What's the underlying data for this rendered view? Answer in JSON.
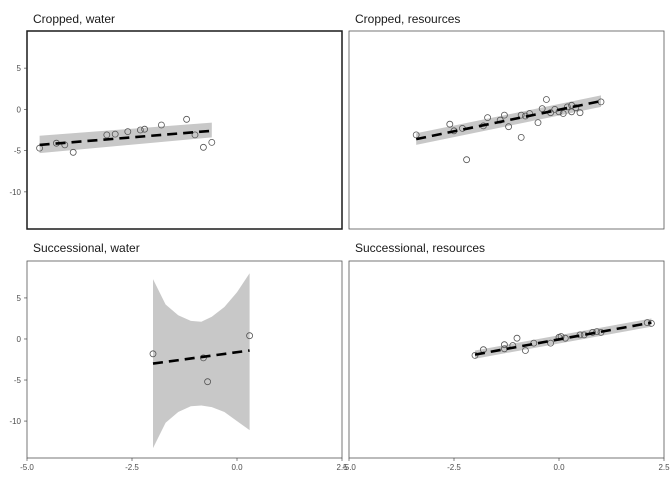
{
  "chart_data": [
    {
      "type": "scatter",
      "title": "Cropped, water",
      "xlim": [
        -5,
        2.5
      ],
      "ylim": [
        -14.5,
        9.5
      ],
      "xticks": [
        "-5.0",
        "-2.5",
        "0.0",
        "2.5"
      ],
      "yticks": [
        "5",
        "0",
        "-5",
        "-10"
      ],
      "points": {
        "x": [
          -4.7,
          -4.3,
          -4.1,
          -3.9,
          -3.1,
          -2.9,
          -2.6,
          -2.3,
          -2.2,
          -1.8,
          -1.2,
          -1.0,
          -0.8,
          -0.6
        ],
        "y": [
          -4.7,
          -4.1,
          -4.3,
          -5.2,
          -3.1,
          -3.0,
          -2.7,
          -2.5,
          -2.4,
          -1.9,
          -1.2,
          -3.1,
          -4.6,
          -4.0
        ]
      },
      "fit": {
        "x": [
          -4.7,
          -0.6
        ],
        "y": [
          -4.3,
          -2.6
        ]
      },
      "band": {
        "x": [
          -4.7,
          -0.6
        ],
        "lower": [
          -5.3,
          -3.4
        ],
        "upper": [
          -3.2,
          -1.6
        ]
      }
    },
    {
      "type": "scatter",
      "title": "Cropped, resources",
      "xlim": [
        -5,
        2.5
      ],
      "ylim": [
        -14.5,
        9.5
      ],
      "xticks": [
        "-5.0",
        "-2.5",
        "0.0",
        "2.5"
      ],
      "yticks": [
        "5",
        "0",
        "-5",
        "-10"
      ],
      "points": {
        "x": [
          -3.4,
          -2.6,
          -2.5,
          -2.3,
          -2.2,
          -1.8,
          -1.7,
          -1.4,
          -1.3,
          -1.2,
          -0.9,
          -0.9,
          -0.8,
          -0.7,
          -0.5,
          -0.4,
          -0.3,
          -0.2,
          -0.1,
          0.0,
          0.1,
          0.2,
          0.3,
          0.3,
          0.4,
          0.5,
          1.0
        ],
        "y": [
          -3.1,
          -1.8,
          -2.6,
          -2.3,
          -6.1,
          -2.0,
          -1.0,
          -1.3,
          -0.7,
          -2.1,
          -3.4,
          -0.7,
          -0.8,
          -0.5,
          -1.6,
          0.1,
          1.2,
          -0.4,
          0.0,
          -0.3,
          -0.5,
          0.3,
          0.5,
          -0.3,
          0.2,
          -0.4,
          0.9
        ]
      },
      "fit": {
        "x": [
          -3.4,
          1.0
        ],
        "y": [
          -3.6,
          1.0
        ]
      },
      "band": {
        "x": [
          -3.4,
          1.0
        ],
        "lower": [
          -4.3,
          0.3
        ],
        "upper": [
          -2.9,
          1.7
        ]
      }
    },
    {
      "type": "scatter",
      "title": "Successional, water",
      "xlim": [
        -5,
        2.5
      ],
      "ylim": [
        -14.5,
        9.5
      ],
      "xticks": [
        "-5.0",
        "-2.5",
        "0.0",
        "2.5"
      ],
      "yticks": [
        "5",
        "0",
        "-5",
        "-10"
      ],
      "points": {
        "x": [
          -2.0,
          -0.8,
          -0.7,
          0.3
        ],
        "y": [
          -1.8,
          -2.3,
          -5.2,
          0.4
        ]
      },
      "fit": {
        "x": [
          -2.0,
          0.3
        ],
        "y": [
          -3.0,
          -1.4
        ]
      },
      "band": {
        "x": [
          -2.0,
          -1.7,
          -1.4,
          -1.1,
          -0.85,
          -0.6,
          -0.3,
          0.0,
          0.3
        ],
        "lower": [
          -13.3,
          -10.2,
          -8.9,
          -8.2,
          -8.1,
          -8.3,
          -8.9,
          -10.0,
          -11.1
        ],
        "upper": [
          7.3,
          4.2,
          2.9,
          2.2,
          2.1,
          2.7,
          3.9,
          5.7,
          8.0
        ]
      }
    },
    {
      "type": "scatter",
      "title": "Successional, resources",
      "xlim": [
        -5,
        2.5
      ],
      "ylim": [
        -14.5,
        9.5
      ],
      "xticks": [
        "-5.0",
        "-2.5",
        "0.0",
        "2.5"
      ],
      "yticks": [
        "5",
        "0",
        "-5",
        "-10"
      ],
      "points": {
        "x": [
          -2.0,
          -1.8,
          -1.3,
          -1.3,
          -1.1,
          -1.0,
          -0.8,
          -0.6,
          -0.2,
          0.0,
          0.05,
          0.15,
          0.5,
          0.6,
          0.8,
          0.9,
          1.0,
          2.1,
          2.2
        ],
        "y": [
          -2.0,
          -1.3,
          -1.2,
          -0.7,
          -0.8,
          0.1,
          -1.4,
          -0.5,
          -0.5,
          0.2,
          0.3,
          0.1,
          0.5,
          0.5,
          0.8,
          0.9,
          0.8,
          2.0,
          1.9
        ]
      },
      "fit": {
        "x": [
          -2.0,
          2.2
        ],
        "y": [
          -1.9,
          2.0
        ]
      },
      "band": {
        "x": [
          -2.0,
          2.2
        ],
        "lower": [
          -2.4,
          1.5
        ],
        "upper": [
          -1.4,
          2.5
        ]
      }
    }
  ],
  "colors": {
    "band": "#c8c8c8",
    "fit": "#000000",
    "point": "#555555",
    "axis": "#333333"
  }
}
